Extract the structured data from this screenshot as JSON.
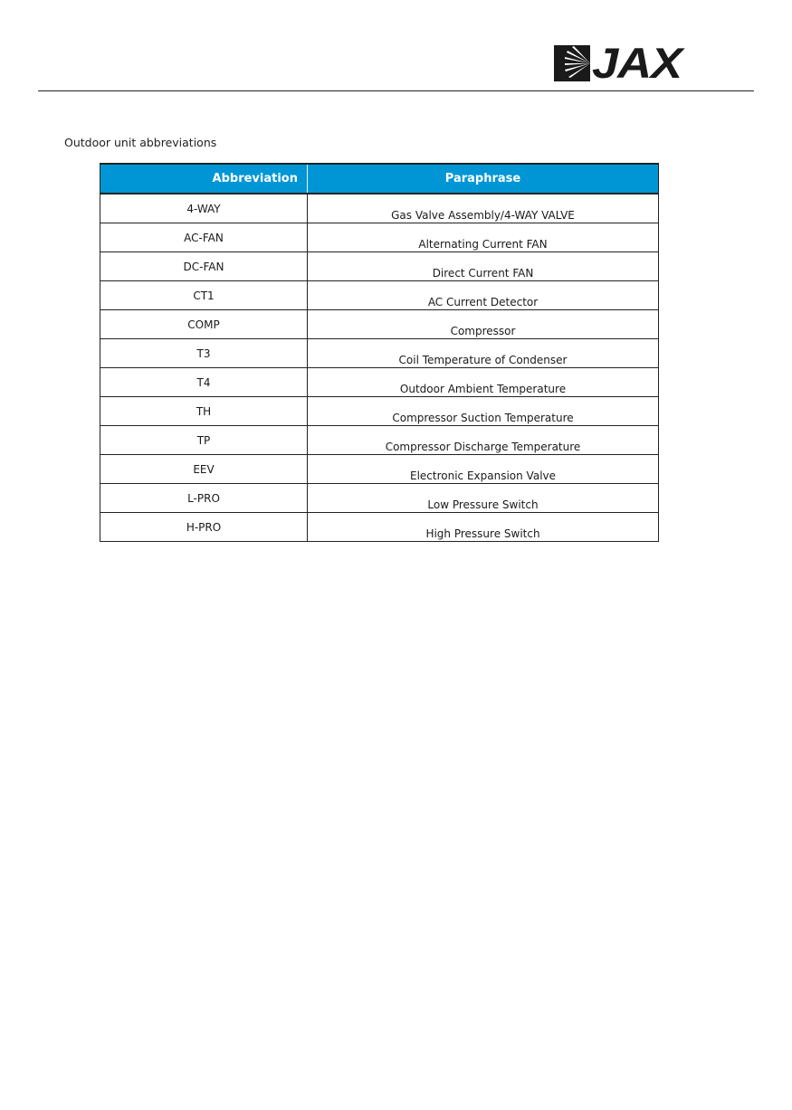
{
  "header": {
    "logo_text": "JAX"
  },
  "section_title": "Outdoor unit abbreviations",
  "table": {
    "header_color": "#0096d6",
    "columns": [
      "Abbreviation",
      "Paraphrase"
    ],
    "rows": [
      [
        "4-WAY",
        "Gas Valve Assembly/4-WAY VALVE"
      ],
      [
        "AC-FAN",
        "Alternating Current FAN"
      ],
      [
        "DC-FAN",
        "Direct Current FAN"
      ],
      [
        "CT1",
        "AC Current Detector"
      ],
      [
        "COMP",
        "Compressor"
      ],
      [
        "T3",
        "Coil Temperature of Condenser"
      ],
      [
        "T4",
        "Outdoor Ambient Temperature"
      ],
      [
        "TH",
        "Compressor Suction Temperature"
      ],
      [
        "TP",
        "Compressor Discharge Temperature"
      ],
      [
        "EEV",
        "Electronic Expansion Valve"
      ],
      [
        "L-PRO",
        "Low Pressure Switch"
      ],
      [
        "H-PRO",
        "High Pressure Switch"
      ]
    ]
  }
}
